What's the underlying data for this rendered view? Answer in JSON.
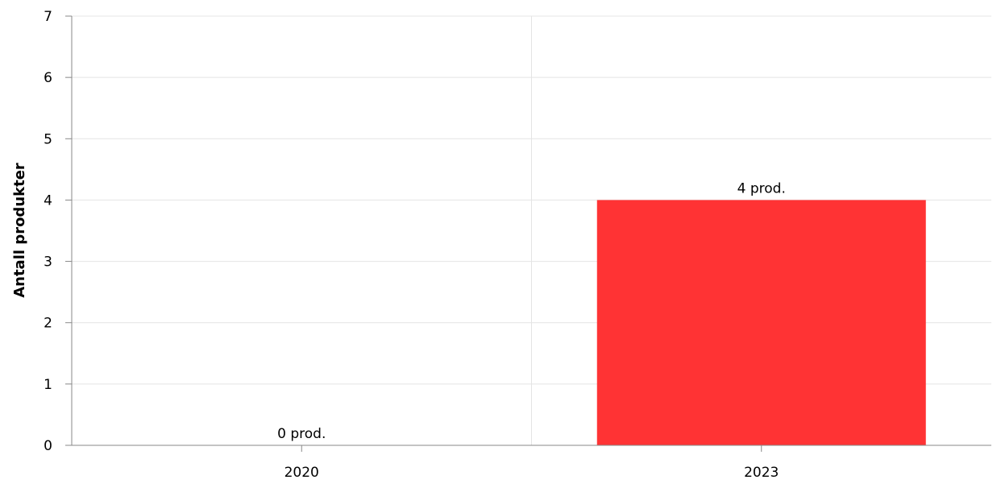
{
  "chart_data": {
    "type": "bar",
    "title": "",
    "xlabel": "",
    "ylabel": "Antall produkter",
    "categories": [
      "2020",
      "2023"
    ],
    "values": [
      0,
      4
    ],
    "data_labels": [
      "0 prod.",
      "4 prod."
    ],
    "ylim": [
      0,
      7
    ],
    "yticks": [
      0,
      1,
      2,
      3,
      4,
      5,
      6,
      7
    ],
    "grid": true,
    "bar_color": "#ff3334",
    "legend": "none"
  }
}
